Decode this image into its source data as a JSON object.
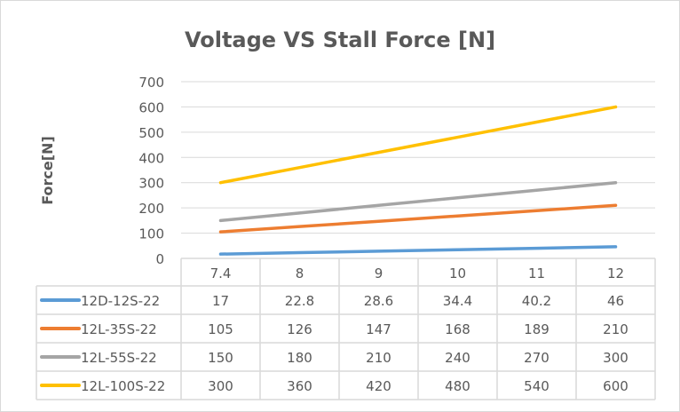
{
  "chart_data": {
    "type": "line",
    "title": "Voltage VS Stall Force [N]",
    "ylabel": "Force[N]",
    "xlabel": "",
    "categories": [
      "7.4",
      "8",
      "9",
      "10",
      "11",
      "12"
    ],
    "ylim": [
      0,
      700
    ],
    "yticks": [
      0,
      100,
      200,
      300,
      400,
      500,
      600,
      700
    ],
    "grid": true,
    "legend": "data-table",
    "series": [
      {
        "name": "12D-12S-22",
        "color": "#5b9bd5",
        "values": [
          17,
          22.8,
          28.6,
          34.4,
          40.2,
          46
        ]
      },
      {
        "name": "12L-35S-22",
        "color": "#ed7d31",
        "values": [
          105,
          126,
          147,
          168,
          189,
          210
        ]
      },
      {
        "name": "12L-55S-22",
        "color": "#a5a5a5",
        "values": [
          150,
          180,
          210,
          240,
          270,
          300
        ]
      },
      {
        "name": "12L-100S-22",
        "color": "#ffc000",
        "values": [
          300,
          360,
          420,
          480,
          540,
          600
        ]
      }
    ]
  }
}
